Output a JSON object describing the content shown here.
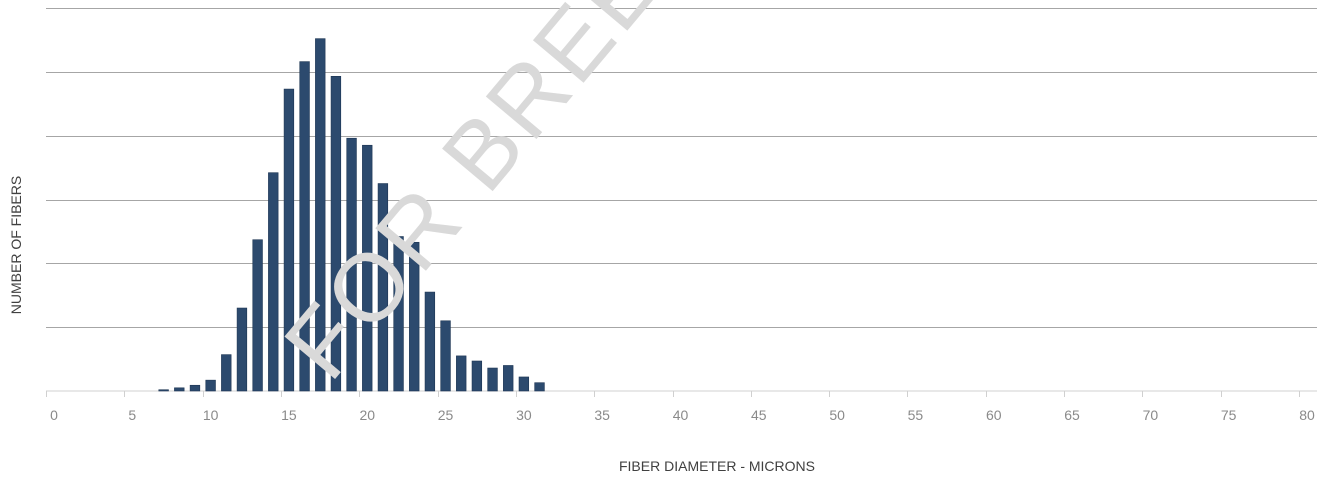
{
  "chart_data": {
    "type": "bar",
    "xlabel": "FIBER DIAMETER - MICRONS",
    "ylabel": "NUMBER OF FIBERS",
    "xlim": [
      0,
      80
    ],
    "x_ticks": [
      0,
      5,
      10,
      15,
      20,
      25,
      30,
      35,
      40,
      45,
      50,
      55,
      60,
      65,
      70,
      75,
      80
    ],
    "ylim": [
      0,
      6
    ],
    "y_gridlines": [
      1,
      2,
      3,
      4,
      5,
      6
    ],
    "y_tick_labels_shown": false,
    "grid": true,
    "bar_color": "#2c4a6e",
    "bars": [
      {
        "x": 7,
        "value": 0.02
      },
      {
        "x": 8,
        "value": 0.05
      },
      {
        "x": 9,
        "value": 0.09
      },
      {
        "x": 10,
        "value": 0.17
      },
      {
        "x": 11,
        "value": 0.57
      },
      {
        "x": 12,
        "value": 1.3
      },
      {
        "x": 13,
        "value": 2.37
      },
      {
        "x": 14,
        "value": 3.42
      },
      {
        "x": 15,
        "value": 4.73
      },
      {
        "x": 16,
        "value": 5.16
      },
      {
        "x": 17,
        "value": 5.52
      },
      {
        "x": 18,
        "value": 4.93
      },
      {
        "x": 19,
        "value": 3.96
      },
      {
        "x": 20,
        "value": 3.85
      },
      {
        "x": 21,
        "value": 3.25
      },
      {
        "x": 22,
        "value": 2.42
      },
      {
        "x": 23,
        "value": 2.33
      },
      {
        "x": 24,
        "value": 1.55
      },
      {
        "x": 25,
        "value": 1.1
      },
      {
        "x": 26,
        "value": 0.55
      },
      {
        "x": 27,
        "value": 0.47
      },
      {
        "x": 28,
        "value": 0.36
      },
      {
        "x": 29,
        "value": 0.4
      },
      {
        "x": 30,
        "value": 0.22
      },
      {
        "x": 31,
        "value": 0.13
      }
    ]
  },
  "watermark": "FOR BREEDERS"
}
